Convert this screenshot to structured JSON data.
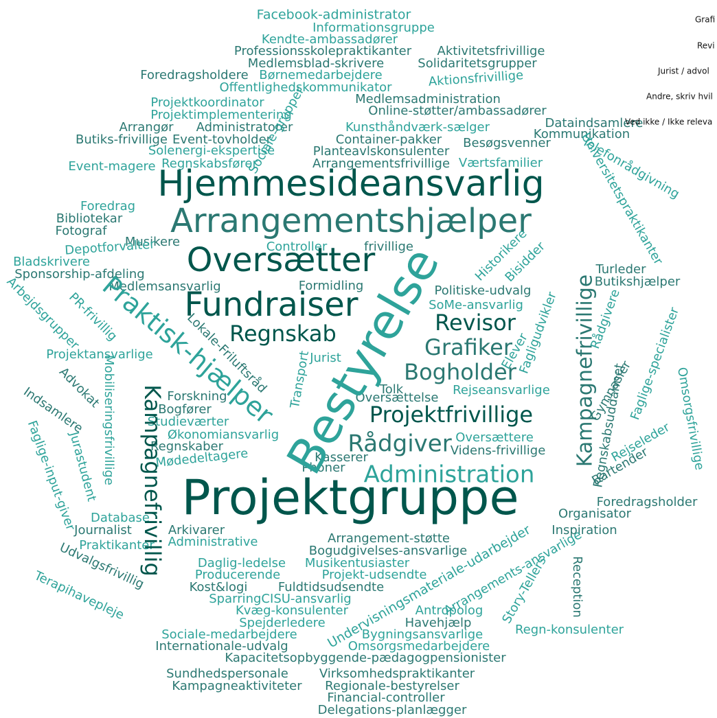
{
  "words": [
    "Facebook-administrator",
    "Informationsgruppe",
    "Kendte-ambassadører",
    "Professionsskolepraktikanter",
    "Aktivitetsfrivillige",
    "Medlemsblad-skrivere",
    "Solidaritetsgrupper",
    "Foredragsholdere",
    "Børnemedarbejdere",
    "Aktionsfrivillige",
    "Offentlighedskommunikator",
    "Medlemsadministration",
    "Projektkoordinator",
    "Online-støtter/ambassadører",
    "Projektimplementering",
    "Arrangør",
    "Administratorer",
    "Kunsthåndværk-sælger",
    "Dataindsamlere",
    "Kommunikation",
    "Butiks-frivillige",
    "Event-tovholder",
    "Container-pakker",
    "Besøgsvenner",
    "Solenergi-ekspertise",
    "Planteavlskonsulenter",
    "Regnskabsfører",
    "Event-magere",
    "Arrangementsfrivillige",
    "Værtsfamilier",
    "Hjemmesideansvarlig",
    "Arrangementshjælper",
    "Foredrag",
    "Bibliotekar",
    "Fotograf",
    "Musikere",
    "Depotforvalter",
    "Controller",
    "frivillige",
    "Oversætter",
    "Bladskrivere",
    "Sponsorship-afdeling",
    "Medlemsansvarlig",
    "Formidling",
    "Politiske-udvalg",
    "Turleder",
    "Butikshjælper",
    "Fundraiser",
    "SoMe-ansvarlig",
    "Revisor",
    "Regnskab",
    "Grafiker",
    "Projektansvarlige",
    "Jurist",
    "Bogholder",
    "Tolk",
    "Rejseansvarlige",
    "Oversættelse",
    "Forskning",
    "Bogfører",
    "Projektfrivillige",
    "Studieværter",
    "Økonomiansvarlig",
    "Rådgiver",
    "Oversættere",
    "Regnskaber",
    "Videns-frivillige",
    "Kasserer",
    "Phoner",
    "Mødedeltagere",
    "Administration",
    "Projektgruppe",
    "Foredragsholder",
    "Organisator",
    "Database",
    "Journalist",
    "Arkivarer",
    "Inspiration",
    "Arrangement-støtte",
    "Administrative",
    "Praktikanter",
    "Bogudgivelses-ansvarlige",
    "Daglig-ledelse",
    "Musikentusiaster",
    "Producerende",
    "Projekt-udsendte",
    "Kost&logi",
    "Fuldtidsudsendte",
    "SparringCISU-ansvarlig",
    "Kvæg-konsulenter",
    "Antropolog",
    "Spejderledere",
    "Havehjælp",
    "Regn-konsulenter",
    "Sociale-medarbejdere",
    "Bygningsansvarlige",
    "Internationale-udvalg",
    "Omsorgsmedarbejdere",
    "Kapacitetsopbyggende-pædagogpensionister",
    "Sundhedspersonale",
    "Virksomhedspraktikanter",
    "Kampagneaktiviteter",
    "Regionale-bestyrelser",
    "Financial-controller",
    "Delegations-planlægger",
    "Bestyrelse",
    "Praktisk-hjælper",
    "Kampagnefrivillig",
    "Kampagnefrivillige",
    "Sociale-grupper",
    "Universitetspraktikanter",
    "Telefonrådgivning",
    "Historikere",
    "Bisidder",
    "Arbejdsgrupper",
    "PR-frivillig",
    "Lokale-Friluftsråd",
    "Mobiliseringsfrivillige",
    "Advokat",
    "Indsamlere",
    "Faglige-input-giver",
    "Jurastudent",
    "Udvalgsfrivillig",
    "Terapihavepleje",
    "Transport",
    "Elever",
    "Fagligudvikler",
    "Rådgivere",
    "Gymnasier",
    "Regnskabsuddannet",
    "Faglige-specialister",
    "Omsorgsfrivillige",
    "Rejseleder",
    "Bartender",
    "Undervisningsmateriale-udarbejder",
    "Arrangements-ansvarlige",
    "Story-Tellers",
    "Reception"
  ],
  "legend": [
    "Grafi",
    "Revi",
    "Jurist / advol",
    "Andre, skriv hvil",
    "Ved ikke / Ikke releva"
  ]
}
